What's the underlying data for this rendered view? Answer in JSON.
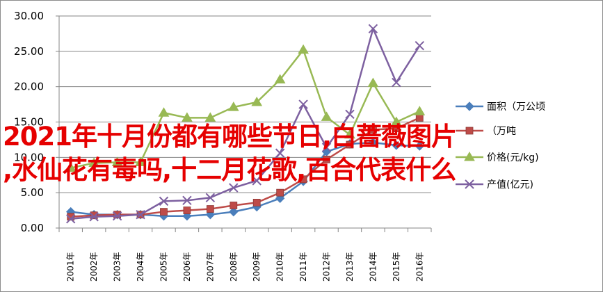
{
  "overlay": {
    "line1": "2021年十月份都有哪些节日,白蔷薇图片",
    "line2": ",水仙花有毒吗,十二月花歌,百合代表什么"
  },
  "chart_data": {
    "type": "line",
    "categories": [
      "2001年",
      "2002年",
      "2003年",
      "2004年",
      "2005年",
      "2006年",
      "2007年",
      "2008年",
      "2009年",
      "2010年",
      "2011年",
      "2012年",
      "2013年",
      "2014年",
      "2015年",
      "2016年"
    ],
    "ylim": [
      0,
      30
    ],
    "yticks": [
      "0.00",
      "5.00",
      "10.00",
      "15.00",
      "20.00",
      "25.00",
      "30.00"
    ],
    "grid": true,
    "legend_position": "right",
    "series": [
      {
        "name": "面积（万公顷",
        "color": "#4a7ebb",
        "marker": "diamond",
        "values": [
          2.3,
          1.9,
          1.9,
          1.9,
          1.7,
          1.7,
          1.9,
          2.3,
          3.0,
          4.2,
          6.6,
          10.8,
          11.9,
          12.1,
          11.7,
          11.6
        ]
      },
      {
        "name": "（万吨",
        "color": "#be4b48",
        "marker": "square",
        "values": [
          1.6,
          1.8,
          1.9,
          1.9,
          2.3,
          2.5,
          2.7,
          3.2,
          3.6,
          5.0,
          6.9,
          9.7,
          11.8,
          13.9,
          14.1,
          15.6
        ]
      },
      {
        "name": "价格(元/kg)",
        "color": "#98b954",
        "marker": "triangle",
        "values": [
          8.5,
          9.2,
          9.3,
          9.3,
          16.3,
          15.6,
          15.6,
          17.1,
          17.8,
          21.0,
          25.2,
          15.7,
          13.2,
          20.5,
          15.0,
          16.5
        ]
      },
      {
        "name": "产值(亿元)",
        "color": "#7d60a0",
        "marker": "x",
        "values": [
          1.3,
          1.6,
          1.7,
          1.9,
          3.8,
          3.9,
          4.3,
          5.7,
          6.7,
          10.6,
          17.5,
          11.4,
          16.1,
          28.2,
          20.6,
          25.8
        ]
      }
    ]
  }
}
